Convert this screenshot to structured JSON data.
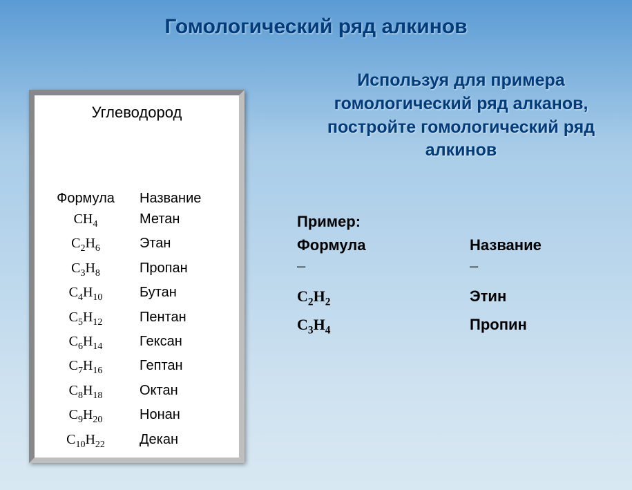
{
  "title": "Гомологический ряд алкинов",
  "subtitle": "Используя для примера гомологический ряд алканов, постройте гомологический ряд алкинов",
  "panel": {
    "heading": "Углеводород",
    "col_formula": "Формула",
    "col_name": "Название",
    "rows": [
      {
        "formula_html": "CH<sub>4</sub>",
        "name": "Метан"
      },
      {
        "formula_html": "C<sub>2</sub>H<sub>6</sub>",
        "name": "Этан"
      },
      {
        "formula_html": "C<sub>3</sub>H<sub>8</sub>",
        "name": "Пропан"
      },
      {
        "formula_html": "C<sub>4</sub>H<sub>10</sub>",
        "name": "Бутан"
      },
      {
        "formula_html": "C<sub>5</sub>H<sub>12</sub>",
        "name": "Пентан"
      },
      {
        "formula_html": "C<sub>6</sub>H<sub>14</sub>",
        "name": "Гексан"
      },
      {
        "formula_html": "C<sub>7</sub>H<sub>16</sub>",
        "name": "Гептан"
      },
      {
        "formula_html": "C<sub>8</sub>H<sub>18</sub>",
        "name": "Октан"
      },
      {
        "formula_html": "C<sub>9</sub>H<sub>20</sub>",
        "name": "Нонан"
      },
      {
        "formula_html": "C<sub>10</sub>H<sub>22</sub>",
        "name": "Декан"
      }
    ]
  },
  "example": {
    "label": "Пример:",
    "col_formula": "Формула",
    "col_name": "Название",
    "dash": "–",
    "rows": [
      {
        "formula_html": "C<sub>2</sub>H<sub>2</sub>",
        "name": "Этин"
      },
      {
        "formula_html": "C<sub>3</sub>H<sub>4</sub>",
        "name": "Пропин"
      }
    ]
  },
  "style": {
    "bg_gradient": [
      "#5a9bd4",
      "#a8cce8",
      "#cfe2f0",
      "#d8e8f2"
    ],
    "title_color": "#003b7a",
    "panel_bg": "#ffffff",
    "panel_border_light": "#bfbfbf",
    "panel_border_dark": "#888888",
    "text_color": "#000000",
    "title_fontsize": 30,
    "subtitle_fontsize": 25,
    "body_fontsize": 22,
    "panel_fontsize": 20
  }
}
